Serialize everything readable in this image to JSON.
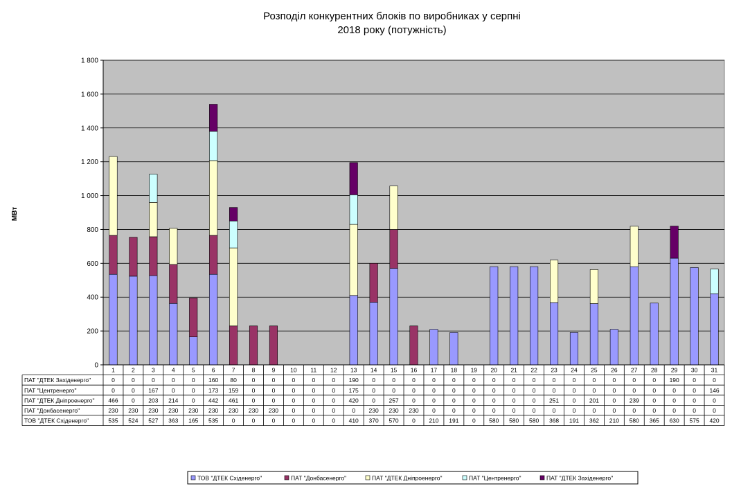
{
  "chart_data": {
    "type": "bar",
    "stacked": true,
    "title_lines": [
      "Розподіл конкурентних  блоків по виробниках  у серпні",
      "2018 року (потужність)"
    ],
    "ylabel": "МВт",
    "xlabel": "",
    "ylim": [
      0,
      1800
    ],
    "yticks": [
      0,
      200,
      400,
      600,
      800,
      1000,
      1200,
      1400,
      1600,
      1800
    ],
    "ytick_labels": [
      "0",
      "200",
      "400",
      "600",
      "800",
      "1 000",
      "1 200",
      "1 400",
      "1 600",
      "1 800"
    ],
    "grid": true,
    "legend_position": "bottom-center",
    "categories": [
      "1",
      "2",
      "3",
      "4",
      "5",
      "6",
      "7",
      "8",
      "9",
      "10",
      "11",
      "12",
      "13",
      "14",
      "15",
      "16",
      "17",
      "18",
      "19",
      "20",
      "21",
      "22",
      "23",
      "24",
      "25",
      "26",
      "27",
      "28",
      "29",
      "30",
      "31"
    ],
    "series": [
      {
        "name": "ТОВ \"ДТЕК Східенерго\"",
        "color": "#9999ff",
        "values": [
          535,
          524,
          527,
          363,
          165,
          535,
          0,
          0,
          0,
          0,
          0,
          0,
          410,
          370,
          570,
          0,
          210,
          191,
          0,
          580,
          580,
          580,
          368,
          191,
          362,
          210,
          580,
          365,
          630,
          575,
          420
        ]
      },
      {
        "name": "ПАТ \"Донбасенерго\"",
        "color": "#993366",
        "values": [
          230,
          230,
          230,
          230,
          230,
          230,
          230,
          230,
          230,
          0,
          0,
          0,
          0,
          230,
          230,
          230,
          0,
          0,
          0,
          0,
          0,
          0,
          0,
          0,
          0,
          0,
          0,
          0,
          0,
          0,
          0
        ]
      },
      {
        "name": "ПАТ \"ДТЕК Дніпроенерго\"",
        "color": "#ffffcc",
        "values": [
          466,
          0,
          203,
          214,
          0,
          442,
          461,
          0,
          0,
          0,
          0,
          0,
          420,
          0,
          257,
          0,
          0,
          0,
          0,
          0,
          0,
          0,
          251,
          0,
          201,
          0,
          239,
          0,
          0,
          0,
          0
        ]
      },
      {
        "name": "ПАТ \"Центренерго\"",
        "color": "#ccffff",
        "values": [
          0,
          0,
          167,
          0,
          0,
          173,
          159,
          0,
          0,
          0,
          0,
          0,
          175,
          0,
          0,
          0,
          0,
          0,
          0,
          0,
          0,
          0,
          0,
          0,
          0,
          0,
          0,
          0,
          0,
          0,
          146
        ]
      },
      {
        "name": "ПАТ \"ДТЕК Західенерго\"",
        "color": "#660066",
        "values": [
          0,
          0,
          0,
          0,
          0,
          160,
          80,
          0,
          0,
          0,
          0,
          0,
          190,
          0,
          0,
          0,
          0,
          0,
          0,
          0,
          0,
          0,
          0,
          0,
          0,
          0,
          0,
          0,
          190,
          0,
          0
        ]
      }
    ],
    "table_row_labels": [
      "ПАТ \"ДТЕК Західенерго\"",
      "ПАТ \"Центренерго\"",
      "ПАТ \"ДТЕК Дніпроенерго\"",
      "ПАТ \"Донбасенерго\"",
      "ТОВ \"ДТЕК Східенерго\""
    ],
    "legend_labels": [
      "ТОВ \"ДТЕК Східенерго\"",
      "ПАТ \"Донбасенерго\"",
      "ПАТ \"ДТЕК Дніпроенерго\"",
      "ПАТ \"Центренерго\"",
      "ПАТ \"ДТЕК Західенерго\""
    ],
    "plot_background": "#c0c0c0"
  }
}
